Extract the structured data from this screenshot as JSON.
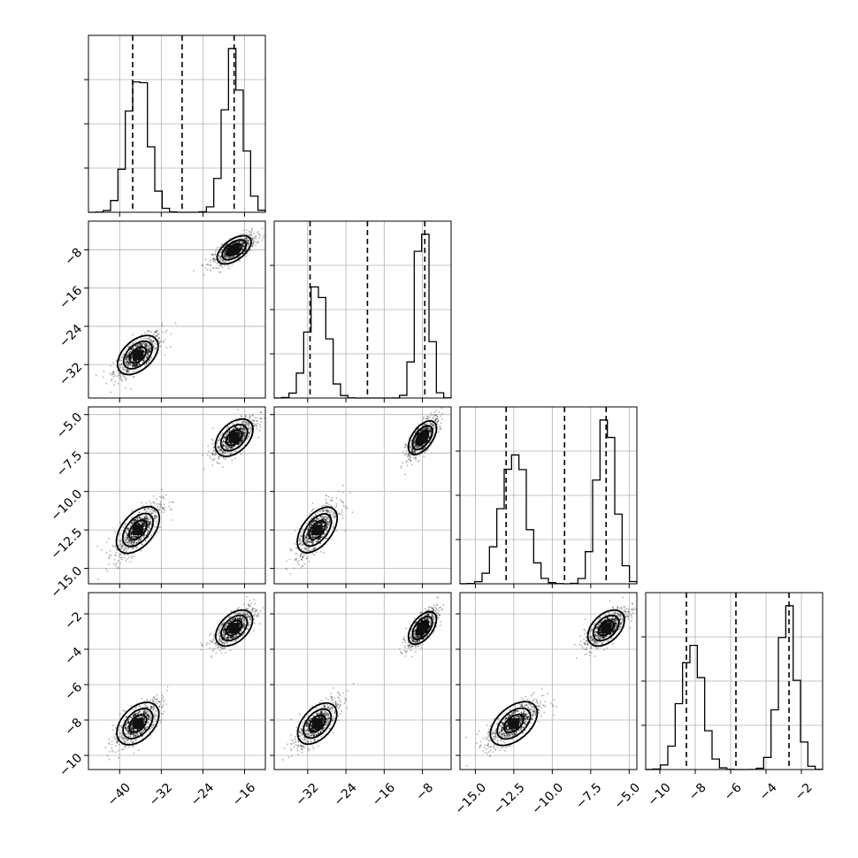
{
  "chart_data": {
    "type": "corner",
    "n_params": 4,
    "grid": true,
    "params": [
      {
        "range": [
          -46,
          -12
        ],
        "ticks": [
          -40,
          -32,
          -24,
          -16
        ],
        "tick_labels": [
          "−40",
          "−32",
          "−24",
          "−16"
        ],
        "quantiles": [
          -37.5,
          -28.0,
          -18.0
        ],
        "modes": [
          {
            "mean": -36.5,
            "sd": 2.0,
            "weight": 0.5
          },
          {
            "mean": -18.0,
            "sd": 1.8,
            "weight": 0.5
          }
        ]
      },
      {
        "range": [
          -39,
          -2
        ],
        "ticks": [
          -32,
          -24,
          -16,
          -8
        ],
        "tick_labels": [
          "−32",
          "−24",
          "−16",
          "−8"
        ],
        "quantiles": [
          -31.5,
          -19.5,
          -7.5
        ],
        "modes": [
          {
            "mean": -30.0,
            "sd": 2.0,
            "weight": 0.5
          },
          {
            "mean": -8.0,
            "sd": 1.4,
            "weight": 0.5
          }
        ]
      },
      {
        "range": [
          -16,
          -4.5
        ],
        "ticks": [
          -15.0,
          -12.5,
          -10.0,
          -7.5,
          -5.0
        ],
        "tick_labels": [
          "−15.0",
          "−12.5",
          "−10.0",
          "−7.5",
          "−5.0"
        ],
        "quantiles": [
          -13.0,
          -9.2,
          -6.5
        ],
        "modes": [
          {
            "mean": -12.5,
            "sd": 0.8,
            "weight": 0.5
          },
          {
            "mean": -6.5,
            "sd": 0.6,
            "weight": 0.5
          }
        ]
      },
      {
        "range": [
          -10.8,
          -0.8
        ],
        "ticks": [
          -10,
          -8,
          -6,
          -4,
          -2
        ],
        "tick_labels": [
          "−10",
          "−8",
          "−6",
          "−4",
          "−2"
        ],
        "quantiles": [
          -8.5,
          -5.7,
          -2.7
        ],
        "modes": [
          {
            "mean": -8.2,
            "sd": 0.6,
            "weight": 0.5
          },
          {
            "mean": -2.8,
            "sd": 0.5,
            "weight": 0.5
          }
        ]
      }
    ],
    "y_axis_ticks": [
      null,
      {
        "ticks": [
          -32,
          -24,
          -16,
          -8
        ],
        "tick_labels": [
          "−32",
          "−24",
          "−16",
          "−8"
        ]
      },
      {
        "ticks": [
          -15.0,
          -12.5,
          -10.0,
          -7.5,
          -5.0
        ],
        "tick_labels": [
          "−15.0",
          "−12.5",
          "−10.0",
          "−7.5",
          "−5.0"
        ]
      },
      {
        "ticks": [
          -10,
          -8,
          -6,
          -4,
          -2
        ],
        "tick_labels": [
          "−10",
          "−8",
          "−6",
          "−4",
          "−2"
        ]
      }
    ]
  }
}
